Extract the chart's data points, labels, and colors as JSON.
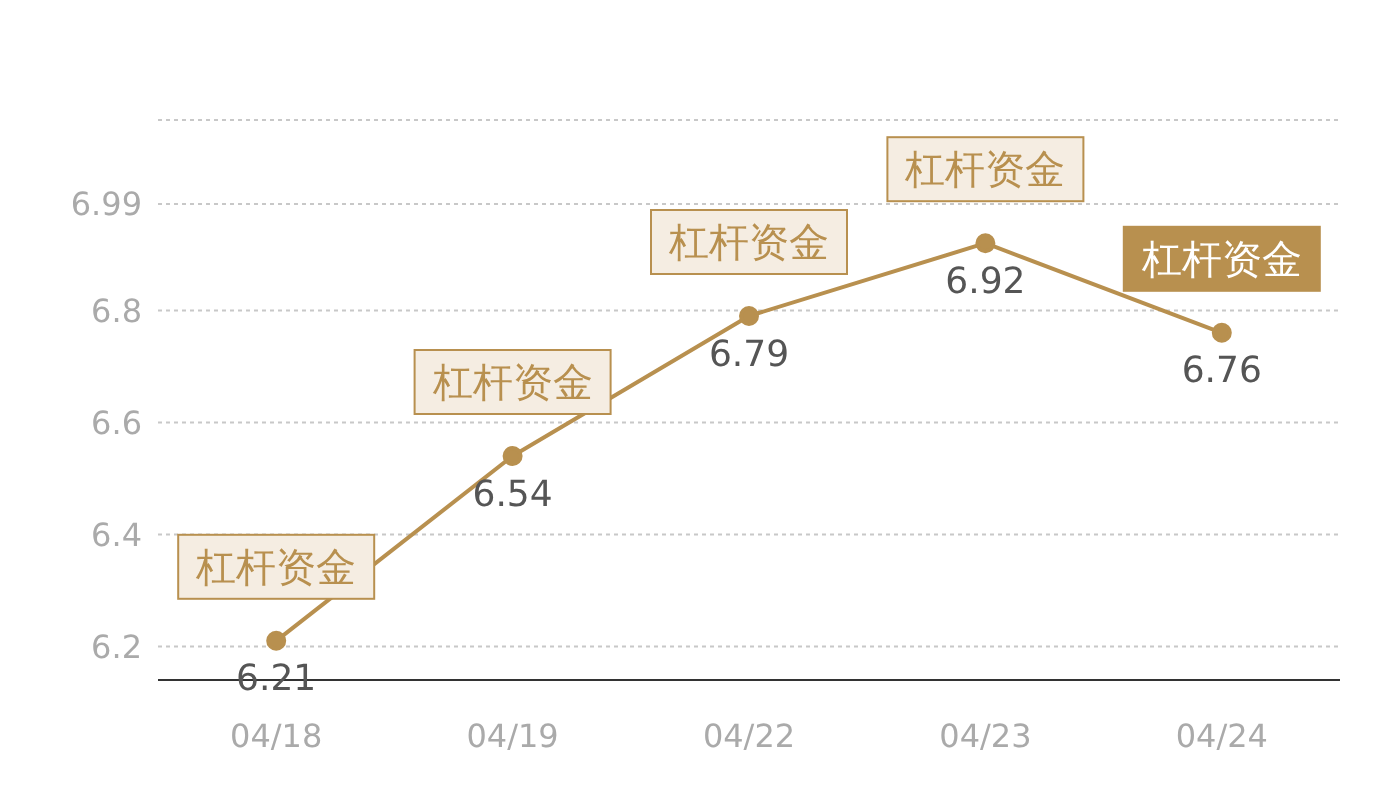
{
  "chart_data": {
    "type": "line",
    "categories": [
      "04/18",
      "04/19",
      "04/22",
      "04/23",
      "04/24"
    ],
    "series": [
      {
        "color": "#b8904f",
        "values": [
          6.21,
          6.54,
          6.79,
          6.92,
          6.76
        ]
      }
    ],
    "ylim": [
      6.14,
      7.14
    ],
    "yticks": [
      6.2,
      6.4,
      6.6,
      6.8,
      6.99
    ],
    "grid": "y",
    "marker": "circle",
    "line_style": "solid",
    "data_labels": true,
    "annotations": [
      {
        "text": "杠杆资金",
        "x": "04/18",
        "y": 6.21
      },
      {
        "text": "杠杆资金",
        "x": "04/19",
        "y": 6.54
      },
      {
        "text": "杠杆资金",
        "x": "04/22",
        "y": 6.79
      },
      {
        "text": "杠杆资金",
        "x": "04/23",
        "y": 6.92
      },
      {
        "text": "杠杆资金",
        "x": "04/24",
        "y": 6.76
      }
    ]
  }
}
